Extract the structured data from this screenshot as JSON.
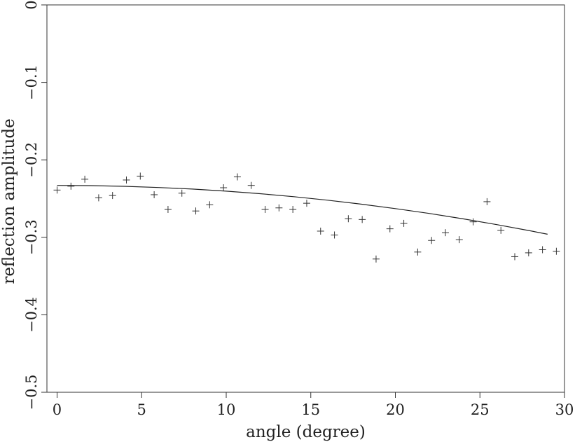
{
  "chart_data": {
    "type": "scatter",
    "title": "",
    "xlabel": "angle (degree)",
    "ylabel": "reflection amplitude",
    "xlim": [
      -0.6,
      30
    ],
    "ylim": [
      -0.5,
      0
    ],
    "xticks": [
      0,
      5,
      10,
      15,
      20,
      25,
      30
    ],
    "xtick_labels": [
      "0",
      "5",
      "10",
      "15",
      "20",
      "25",
      "30"
    ],
    "yticks": [
      0,
      -0.1,
      -0.2,
      -0.3,
      -0.4,
      -0.5
    ],
    "ytick_labels": [
      "0",
      "−0.1",
      "−0.2",
      "−0.3",
      "−0.4",
      "−0.5"
    ],
    "grid": false,
    "series": [
      {
        "kind": "points",
        "marker": "+",
        "x": [
          0.0,
          0.82,
          1.64,
          2.46,
          3.28,
          4.1,
          4.92,
          5.74,
          6.56,
          7.38,
          8.2,
          9.02,
          9.84,
          10.66,
          11.48,
          12.3,
          13.12,
          13.94,
          14.76,
          15.58,
          16.4,
          17.22,
          18.04,
          18.86,
          19.68,
          20.5,
          21.32,
          22.14,
          22.96,
          23.78,
          24.6,
          25.42,
          26.24,
          27.06,
          27.88,
          28.7,
          29.52
        ],
        "y": [
          -0.239,
          -0.234,
          -0.225,
          -0.249,
          -0.246,
          -0.226,
          -0.221,
          -0.245,
          -0.264,
          -0.243,
          -0.266,
          -0.258,
          -0.236,
          -0.222,
          -0.233,
          -0.264,
          -0.262,
          -0.264,
          -0.256,
          -0.292,
          -0.297,
          -0.276,
          -0.277,
          -0.328,
          -0.289,
          -0.282,
          -0.319,
          -0.304,
          -0.294,
          -0.303,
          -0.28,
          -0.254,
          -0.291,
          -0.325,
          -0.32,
          -0.316,
          -0.318
        ]
      },
      {
        "kind": "line",
        "x": [
          0,
          2,
          4,
          6,
          8,
          10,
          12,
          14,
          16,
          18,
          20,
          22,
          24,
          26,
          28,
          29
        ],
        "y": [
          -0.233,
          -0.2333,
          -0.2342,
          -0.2357,
          -0.2377,
          -0.2404,
          -0.2437,
          -0.2476,
          -0.2521,
          -0.2572,
          -0.2629,
          -0.2692,
          -0.2761,
          -0.2836,
          -0.2917,
          -0.296
        ]
      }
    ]
  }
}
